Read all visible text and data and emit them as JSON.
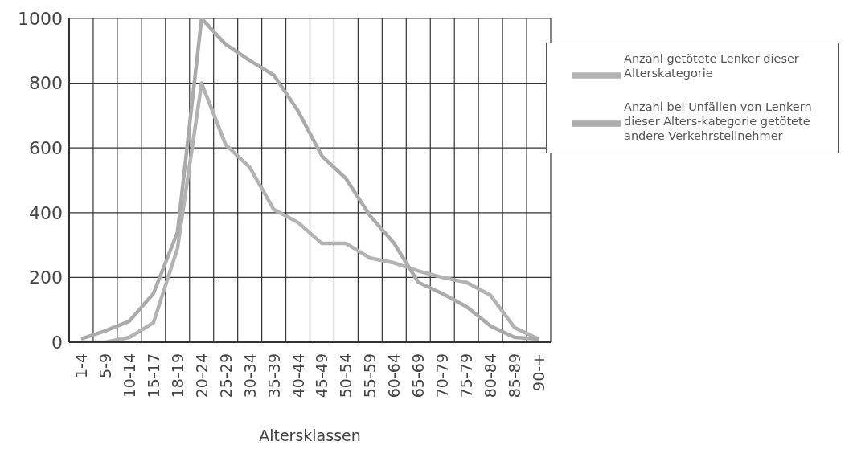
{
  "chart_data": {
    "type": "line",
    "xlabel": "Altersklassen",
    "categories": [
      "1-4",
      "5-9",
      "10-14",
      "15-17",
      "18-19",
      "20-24",
      "25-29",
      "30-34",
      "35-39",
      "40-44",
      "45-49",
      "50-54",
      "55-59",
      "60-64",
      "65-69",
      "70-79",
      "75-79",
      "80-84",
      "85-89",
      "90-+"
    ],
    "series": [
      {
        "name": "Anzahl getötete Lenker dieser Alterskategorie",
        "color": "#b3b3b3",
        "values": [
          0,
          0,
          15,
          60,
          290,
          800,
          610,
          540,
          410,
          370,
          305,
          305,
          260,
          245,
          220,
          200,
          185,
          145,
          45,
          10
        ]
      },
      {
        "name": "Anzahl bei Unfällen von Lenkern dieser Alters-kategorie getötete andere Verkehrsteilnehmer",
        "color": "#ababab",
        "values": [
          10,
          35,
          65,
          150,
          340,
          1000,
          920,
          870,
          825,
          715,
          575,
          505,
          390,
          305,
          185,
          150,
          110,
          50,
          15,
          10
        ]
      }
    ],
    "ylim": [
      0,
      1000
    ],
    "yticks": [
      0,
      200,
      400,
      600,
      800,
      1000
    ],
    "grid": true,
    "legend": "top right",
    "marker": "none",
    "line_style": "solid"
  }
}
